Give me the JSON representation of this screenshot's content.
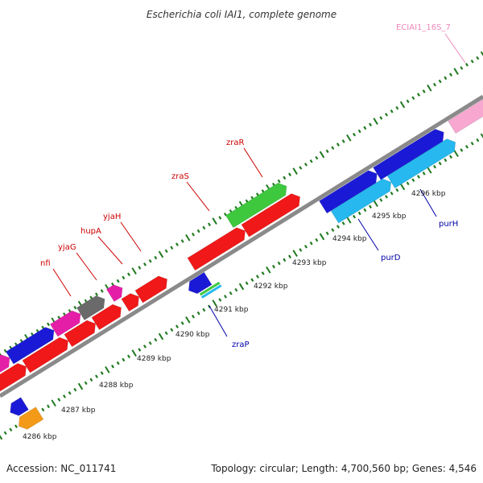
{
  "title": "Escherichia coli IAI1, complete genome",
  "footer": {
    "accession": "Accession: NC_011741",
    "summary": "Topology: circular; Length: 4,700,560 bp; Genes: 4,546"
  },
  "colors": {
    "red": "#f01818",
    "blue": "#1a1ad6",
    "cyan": "#26b8ee",
    "green": "#3ec83e",
    "magenta": "#e51ea8",
    "gray": "#6a6a6a",
    "orange": "#f39a18",
    "pink": "#f8a8d0",
    "tick_green": "#1f7a1f",
    "backbone": "#8a8a8a",
    "label_red": "#cc0000",
    "label_blue": "#0000aa",
    "label_pink": "#ee88bb"
  },
  "ticks": [
    {
      "label": "4286 kbp"
    },
    {
      "label": "4287 kbp"
    },
    {
      "label": "4288 kbp"
    },
    {
      "label": "4289 kbp"
    },
    {
      "label": "4290 kbp"
    },
    {
      "label": "4291 kbp"
    },
    {
      "label": "4292 kbp"
    },
    {
      "label": "4293 kbp"
    },
    {
      "label": "4294 kbp"
    },
    {
      "label": "4295 kbp"
    },
    {
      "label": "4296 kbp"
    }
  ],
  "gene_labels": [
    {
      "name": "nfi",
      "color": "label_red"
    },
    {
      "name": "yjaG",
      "color": "label_red"
    },
    {
      "name": "hupA",
      "color": "label_red"
    },
    {
      "name": "yjaH",
      "color": "label_red"
    },
    {
      "name": "zraS",
      "color": "label_red"
    },
    {
      "name": "zraR",
      "color": "label_red"
    },
    {
      "name": "zraP",
      "color": "label_blue"
    },
    {
      "name": "purD",
      "color": "label_blue"
    },
    {
      "name": "purH",
      "color": "label_blue"
    },
    {
      "name": "ECIAI1_16S_7",
      "color": "label_pink"
    }
  ]
}
